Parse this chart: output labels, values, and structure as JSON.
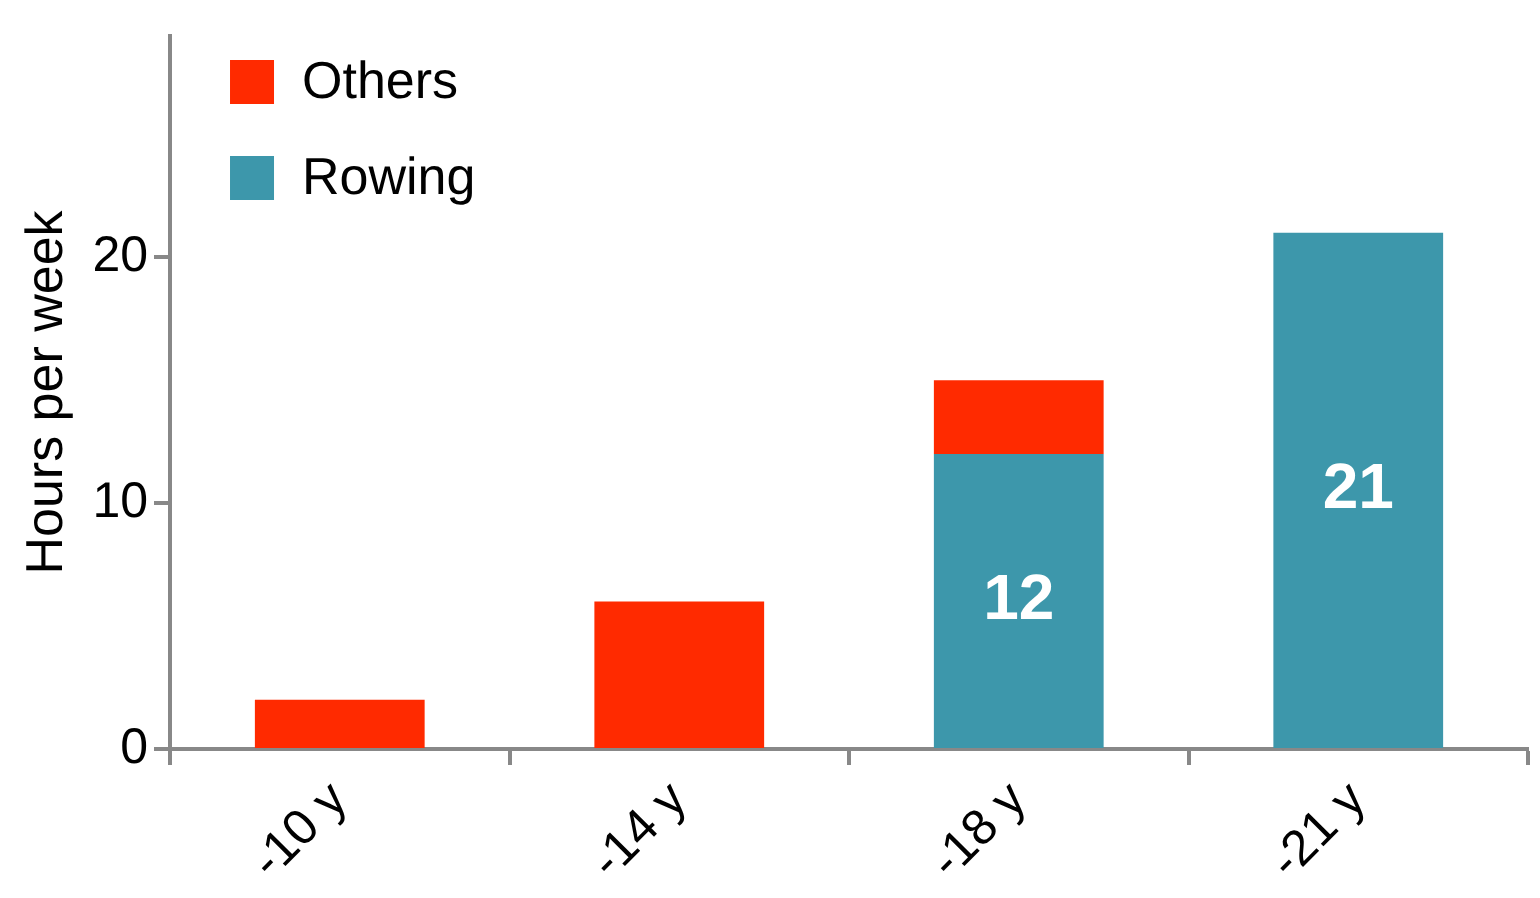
{
  "chart_data": {
    "type": "bar",
    "stacked": true,
    "ylabel": "Hours per week",
    "categories": [
      "-10 y",
      "-14 y",
      "-18 y",
      "-21 y"
    ],
    "series": [
      {
        "name": "Rowing",
        "color": "#3d97ab",
        "values": [
          0,
          0,
          12,
          21
        ],
        "value_labels": [
          null,
          null,
          "12",
          "21"
        ]
      },
      {
        "name": "Others",
        "color": "#ff2a00",
        "values": [
          2,
          6,
          3,
          0
        ]
      }
    ],
    "ylim": [
      0,
      29
    ],
    "yticks": [
      0,
      10,
      20
    ],
    "legend": "top left",
    "grid": false
  }
}
